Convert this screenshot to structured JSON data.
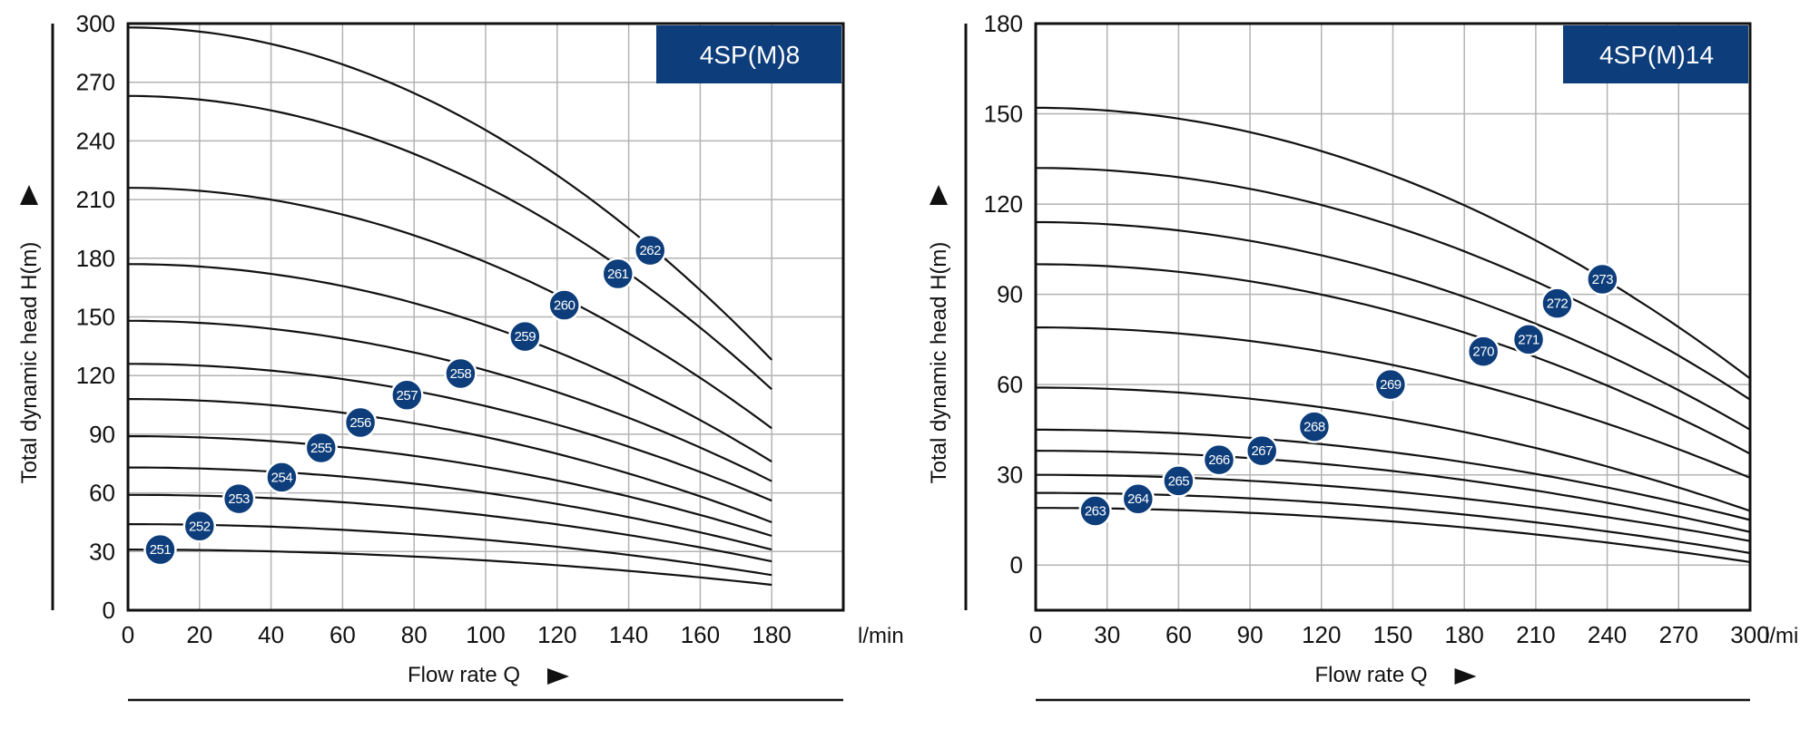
{
  "chart_data": [
    {
      "type": "line",
      "title": "4SP(M)8",
      "xlabel": "Flow rate Q",
      "ylabel": "Total dynamic head H(m)",
      "x_unit": "l/min",
      "xlim": [
        0,
        200
      ],
      "ylim": [
        0,
        300
      ],
      "x_ticks": [
        "0",
        "20",
        "40",
        "60",
        "80",
        "100",
        "120",
        "140",
        "160",
        "180"
      ],
      "y_ticks": [
        "0",
        "30",
        "60",
        "90",
        "120",
        "150",
        "180",
        "210",
        "240",
        "270",
        "300"
      ],
      "grid": true,
      "series": [
        {
          "name": "251",
          "h0": 31,
          "h_end": 13,
          "label_x": 9,
          "label_y": 31
        },
        {
          "name": "252",
          "h0": 44,
          "h_end": 18,
          "label_x": 20,
          "label_y": 43
        },
        {
          "name": "253",
          "h0": 59,
          "h_end": 25,
          "label_x": 31,
          "label_y": 57
        },
        {
          "name": "254",
          "h0": 73,
          "h_end": 31,
          "label_x": 43,
          "label_y": 68
        },
        {
          "name": "255",
          "h0": 89,
          "h_end": 38,
          "label_x": 54,
          "label_y": 83
        },
        {
          "name": "256",
          "h0": 108,
          "h_end": 45,
          "label_x": 65,
          "label_y": 96
        },
        {
          "name": "257",
          "h0": 126,
          "h_end": 56,
          "label_x": 78,
          "label_y": 110
        },
        {
          "name": "258",
          "h0": 148,
          "h_end": 66,
          "label_x": 93,
          "label_y": 121
        },
        {
          "name": "259",
          "h0": 177,
          "h_end": 76,
          "label_x": 111,
          "label_y": 140
        },
        {
          "name": "260",
          "h0": 216,
          "h_end": 93,
          "label_x": 122,
          "label_y": 156
        },
        {
          "name": "261",
          "h0": 263,
          "h_end": 113,
          "label_x": 137,
          "label_y": 172
        },
        {
          "name": "262",
          "h0": 298,
          "h_end": 128,
          "label_x": 146,
          "label_y": 184
        }
      ]
    },
    {
      "type": "line",
      "title": "4SP(M)14",
      "xlabel": "Flow rate Q",
      "ylabel": "Total dynamic head H(m)",
      "x_unit": "l/min",
      "xlim": [
        0,
        300
      ],
      "ylim": [
        -15,
        180
      ],
      "x_ticks": [
        "0",
        "30",
        "60",
        "90",
        "120",
        "150",
        "180",
        "210",
        "240",
        "270",
        "300"
      ],
      "y_ticks": [
        "0",
        "30",
        "60",
        "90",
        "120",
        "150",
        "180"
      ],
      "grid": true,
      "series": [
        {
          "name": "263",
          "h0": 19,
          "h_end": 1,
          "label_x": 25,
          "label_y": 18
        },
        {
          "name": "264",
          "h0": 24,
          "h_end": 4,
          "label_x": 43,
          "label_y": 22
        },
        {
          "name": "265",
          "h0": 30,
          "h_end": 8,
          "label_x": 60,
          "label_y": 28
        },
        {
          "name": "266",
          "h0": 38,
          "h_end": 11,
          "label_x": 77,
          "label_y": 35
        },
        {
          "name": "267",
          "h0": 45,
          "h_end": 15,
          "label_x": 95,
          "label_y": 38
        },
        {
          "name": "268",
          "h0": 59,
          "h_end": 18,
          "label_x": 117,
          "label_y": 46
        },
        {
          "name": "269",
          "h0": 79,
          "h_end": 29,
          "label_x": 149,
          "label_y": 60
        },
        {
          "name": "270",
          "h0": 100,
          "h_end": 37,
          "label_x": 188,
          "label_y": 71
        },
        {
          "name": "271",
          "h0": 114,
          "h_end": 45,
          "label_x": 207,
          "label_y": 75
        },
        {
          "name": "272",
          "h0": 132,
          "h_end": 55,
          "label_x": 219,
          "label_y": 87
        },
        {
          "name": "273",
          "h0": 152,
          "h_end": 62,
          "label_x": 238,
          "label_y": 95
        }
      ]
    }
  ],
  "colors": {
    "title_bg": "#0d3d7a",
    "label_bg": "#0d3d7a",
    "grid": "#b3b3b3",
    "curve": "#111111"
  }
}
